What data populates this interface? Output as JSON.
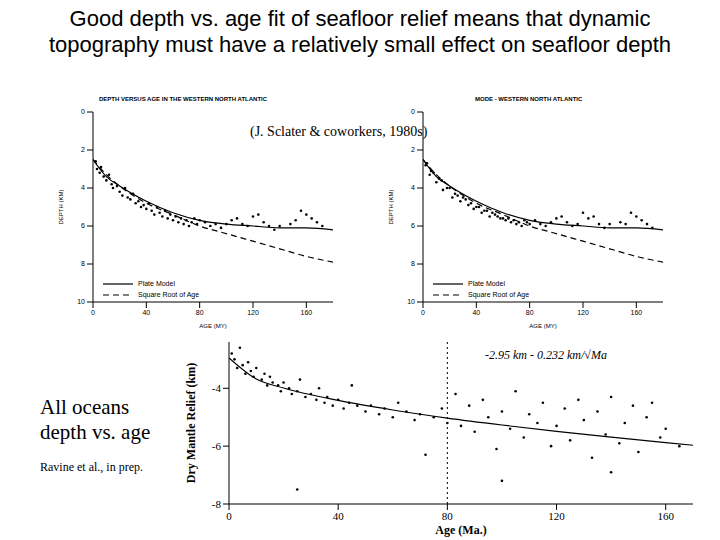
{
  "title": "Good depth vs. age fit of seafloor relief means that dynamic topography must have a relatively small effect on seafloor depth",
  "source": "(J. Sclater & coworkers, 1980s)",
  "caption": "All oceans depth vs. age",
  "caption_source": "Ravine et al., in prep.",
  "chart_data": [
    {
      "type": "scatter",
      "title": "DEPTH VERSUS AGE IN THE WESTERN NORTH ATLANTIC",
      "x_label": "AGE (MY)",
      "y_label": "DEPTH (KM)",
      "xlim": [
        0,
        180
      ],
      "ylim": [
        10,
        0
      ],
      "xticks": [
        0,
        40,
        80,
        120,
        160
      ],
      "yticks": [
        0,
        2,
        4,
        6,
        8,
        10
      ],
      "legend": "lower left",
      "series": [
        {
          "type": "scatter",
          "color": "#000000",
          "marker": "dot",
          "x": [
            2,
            3,
            5,
            6,
            8,
            10,
            12,
            14,
            15,
            18,
            20,
            22,
            24,
            26,
            28,
            30,
            32,
            34,
            36,
            38,
            40,
            42,
            44,
            46,
            48,
            50,
            52,
            54,
            56,
            58,
            60,
            62,
            64,
            66,
            68,
            70,
            72,
            74,
            76,
            78,
            80,
            84,
            88,
            92,
            96,
            100,
            104,
            108,
            112,
            116,
            120,
            124,
            128,
            132,
            136,
            140,
            148,
            152,
            156,
            160,
            164,
            168,
            172
          ],
          "values": [
            2.6,
            3.0,
            3.2,
            2.9,
            3.4,
            3.6,
            3.3,
            3.8,
            4.0,
            3.9,
            4.2,
            4.4,
            4.0,
            4.5,
            4.6,
            4.3,
            4.8,
            4.7,
            5.0,
            4.9,
            5.1,
            4.8,
            5.2,
            5.4,
            5.0,
            5.3,
            5.5,
            5.2,
            5.6,
            5.4,
            5.7,
            5.5,
            5.8,
            5.6,
            5.9,
            5.7,
            6.0,
            5.8,
            5.6,
            5.9,
            5.7,
            5.8,
            6.0,
            5.9,
            6.1,
            5.9,
            5.7,
            5.6,
            5.9,
            6.0,
            5.5,
            5.4,
            5.8,
            6.0,
            6.2,
            6.0,
            5.9,
            5.7,
            5.2,
            5.4,
            5.6,
            5.8,
            6.0
          ]
        },
        {
          "name": "Plate Model",
          "type": "line",
          "color": "#000000",
          "line_style": "solid",
          "x": [
            0,
            10,
            20,
            40,
            60,
            80,
            100,
            120,
            140,
            160,
            180
          ],
          "values": [
            2.5,
            3.4,
            3.9,
            4.7,
            5.3,
            5.7,
            5.9,
            6.0,
            6.1,
            6.1,
            6.2
          ]
        },
        {
          "name": "Square Root of Age",
          "type": "line",
          "color": "#000000",
          "line_style": "dashed",
          "x": [
            0,
            10,
            20,
            40,
            60,
            80,
            100,
            120,
            140,
            160,
            180
          ],
          "values": [
            2.5,
            3.3,
            3.9,
            4.8,
            5.4,
            6.0,
            6.4,
            6.8,
            7.2,
            7.6,
            7.9
          ]
        }
      ]
    },
    {
      "type": "scatter",
      "title": "MODE - WESTERN NORTH ATLANTIC",
      "x_label": "AGE (MY)",
      "y_label": "DEPTH (KM)",
      "xlim": [
        0,
        180
      ],
      "ylim": [
        10,
        0
      ],
      "xticks": [
        0,
        40,
        80,
        120,
        160
      ],
      "yticks": [
        0,
        2,
        4,
        6,
        8,
        10
      ],
      "legend": "lower left",
      "series": [
        {
          "type": "scatter",
          "color": "#000000",
          "marker": "dot",
          "x": [
            2,
            3,
            5,
            6,
            8,
            10,
            12,
            14,
            15,
            18,
            20,
            22,
            24,
            26,
            28,
            30,
            32,
            34,
            36,
            38,
            40,
            42,
            44,
            46,
            48,
            50,
            52,
            54,
            56,
            58,
            60,
            62,
            64,
            66,
            68,
            70,
            72,
            74,
            76,
            78,
            80,
            84,
            88,
            92,
            96,
            100,
            104,
            108,
            112,
            116,
            120,
            124,
            128,
            132,
            136,
            140,
            148,
            152,
            156,
            160,
            164,
            168,
            172
          ],
          "values": [
            2.8,
            2.7,
            3.3,
            3.1,
            3.2,
            3.7,
            3.5,
            3.6,
            4.1,
            4.0,
            4.0,
            4.5,
            4.3,
            4.4,
            4.7,
            4.5,
            4.6,
            4.9,
            4.8,
            5.1,
            5.0,
            5.0,
            5.3,
            5.2,
            5.2,
            5.5,
            5.3,
            5.4,
            5.5,
            5.6,
            5.6,
            5.7,
            5.6,
            5.8,
            5.7,
            5.9,
            5.8,
            6.0,
            5.7,
            5.8,
            5.9,
            5.7,
            5.9,
            6.0,
            5.8,
            5.6,
            5.5,
            5.8,
            6.0,
            5.9,
            5.3,
            5.6,
            5.5,
            5.9,
            6.1,
            5.9,
            5.8,
            5.9,
            5.3,
            5.5,
            5.7,
            5.9,
            6.1
          ]
        },
        {
          "name": "Plate Model",
          "type": "line",
          "color": "#000000",
          "line_style": "solid",
          "x": [
            0,
            10,
            20,
            40,
            60,
            80,
            100,
            120,
            140,
            160,
            180
          ],
          "values": [
            2.5,
            3.4,
            3.9,
            4.7,
            5.3,
            5.7,
            5.9,
            6.0,
            6.1,
            6.1,
            6.2
          ]
        },
        {
          "name": "Square Root of Age",
          "type": "line",
          "color": "#000000",
          "line_style": "dashed",
          "x": [
            0,
            10,
            20,
            40,
            60,
            80,
            100,
            120,
            140,
            160,
            180
          ],
          "values": [
            2.5,
            3.3,
            3.9,
            4.8,
            5.4,
            6.0,
            6.4,
            6.8,
            7.2,
            7.6,
            7.9
          ]
        }
      ]
    },
    {
      "type": "scatter",
      "x_label": "Age (Ma.)",
      "y_label": "Dry Mantle Relief (km)",
      "annotation": "-2.95 km - 0.232 km/√Ma",
      "xlim": [
        0,
        170
      ],
      "ylim": [
        -8,
        -2.4
      ],
      "xticks": [
        0,
        40,
        80,
        120,
        160
      ],
      "yticks": [
        -8,
        -6,
        -4
      ],
      "vertical_line": {
        "x": 80,
        "line_style": "dotted"
      },
      "series": [
        {
          "type": "scatter",
          "color": "#000000",
          "marker": "dot",
          "x": [
            1,
            2,
            3,
            4,
            5,
            6,
            7,
            8,
            9,
            10,
            12,
            13,
            14,
            15,
            16,
            18,
            19,
            20,
            22,
            23,
            25,
            26,
            28,
            30,
            32,
            33,
            35,
            36,
            38,
            40,
            42,
            44,
            45,
            47,
            50,
            52,
            55,
            57,
            60,
            62,
            65,
            68,
            70,
            72,
            75,
            78,
            80,
            83,
            85,
            88,
            90,
            93,
            95,
            98,
            100,
            103,
            105,
            108,
            110,
            113,
            115,
            118,
            120,
            123,
            125,
            128,
            130,
            133,
            135,
            138,
            140,
            143,
            145,
            148,
            150,
            153,
            155,
            158,
            160,
            165,
            25,
            100,
            140
          ],
          "values": [
            -2.8,
            -3.0,
            -3.3,
            -2.6,
            -3.2,
            -3.5,
            -3.1,
            -3.4,
            -3.6,
            -3.3,
            -3.7,
            -3.5,
            -3.9,
            -3.6,
            -3.8,
            -3.9,
            -4.1,
            -3.8,
            -4.0,
            -4.2,
            -4.1,
            -3.7,
            -4.3,
            -4.2,
            -4.4,
            -4.0,
            -4.5,
            -4.3,
            -4.6,
            -4.4,
            -4.7,
            -4.5,
            -3.9,
            -4.6,
            -4.8,
            -4.6,
            -4.9,
            -4.7,
            -5.0,
            -4.5,
            -4.8,
            -5.1,
            -4.9,
            -6.3,
            -5.0,
            -4.7,
            -5.2,
            -4.2,
            -5.3,
            -4.6,
            -5.5,
            -4.4,
            -5.0,
            -6.1,
            -4.8,
            -5.4,
            -4.1,
            -5.7,
            -4.9,
            -5.2,
            -4.5,
            -6.0,
            -5.3,
            -4.7,
            -5.8,
            -4.4,
            -5.1,
            -6.4,
            -4.8,
            -5.6,
            -4.3,
            -5.9,
            -5.2,
            -4.6,
            -6.2,
            -5.0,
            -4.5,
            -5.7,
            -5.4,
            -6.0,
            -7.5,
            -7.2,
            -6.9
          ]
        },
        {
          "type": "line",
          "color": "#000000",
          "line_style": "solid",
          "x": [
            0,
            10,
            20,
            40,
            60,
            80,
            100,
            120,
            140,
            160,
            170
          ],
          "values": [
            -2.95,
            -3.68,
            -3.99,
            -4.42,
            -4.75,
            -5.03,
            -5.27,
            -5.49,
            -5.69,
            -5.88,
            -5.97
          ]
        }
      ]
    }
  ]
}
